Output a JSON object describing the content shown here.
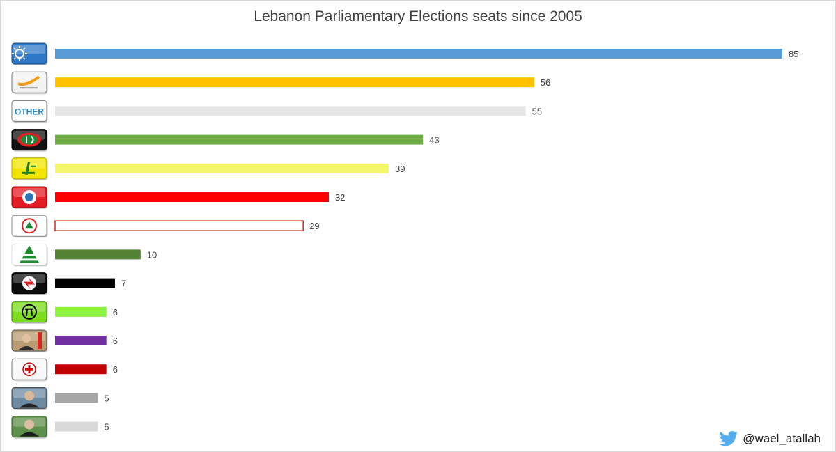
{
  "chart_data": {
    "type": "bar",
    "orientation": "horizontal",
    "title": "Lebanon Parliamentary Elections seats since 2005",
    "xlabel": "",
    "ylabel": "",
    "xlim": [
      0,
      85
    ],
    "grid": false,
    "legend": "none",
    "categories": [
      {
        "logo": "future-movement-logo",
        "value": 85,
        "color": "#5b9bd5",
        "outline": false
      },
      {
        "logo": "free-patriotic-movement-logo",
        "value": 56,
        "color": "#ffc000",
        "outline": false
      },
      {
        "logo": "other-logo",
        "logo_text": "OTHER",
        "value": 55,
        "color": "#e7e6e6",
        "outline": false
      },
      {
        "logo": "amal-movement-logo",
        "value": 43,
        "color": "#70ad47",
        "outline": false
      },
      {
        "logo": "hezbollah-logo",
        "value": 39,
        "color": "#f4f76e",
        "outline": false
      },
      {
        "logo": "progressive-socialist-party-logo",
        "value": 32,
        "color": "#ff0000",
        "outline": false
      },
      {
        "logo": "lebanese-forces-logo",
        "value": 29,
        "color": "#ffffff",
        "outline": true,
        "outline_color": "#e02020"
      },
      {
        "logo": "kataeb-party-logo",
        "value": 10,
        "color": "#548235",
        "outline": false
      },
      {
        "logo": "ssnp-logo",
        "value": 7,
        "color": "#000000",
        "outline": false
      },
      {
        "logo": "tashnag-party-logo",
        "value": 6,
        "color": "#8bf23f",
        "outline": false
      },
      {
        "logo": "politician-portrait-1",
        "value": 6,
        "color": "#7030a0",
        "outline": false
      },
      {
        "logo": "marada-movement-logo",
        "value": 6,
        "color": "#c00000",
        "outline": false
      },
      {
        "logo": "politician-portrait-2",
        "value": 5,
        "color": "#a5a5a5",
        "outline": false
      },
      {
        "logo": "politician-portrait-3",
        "value": 5,
        "color": "#d9d9d9",
        "outline": false
      }
    ]
  },
  "watermark": {
    "icon": "twitter-bird-icon",
    "handle": "@wael_atallah"
  }
}
